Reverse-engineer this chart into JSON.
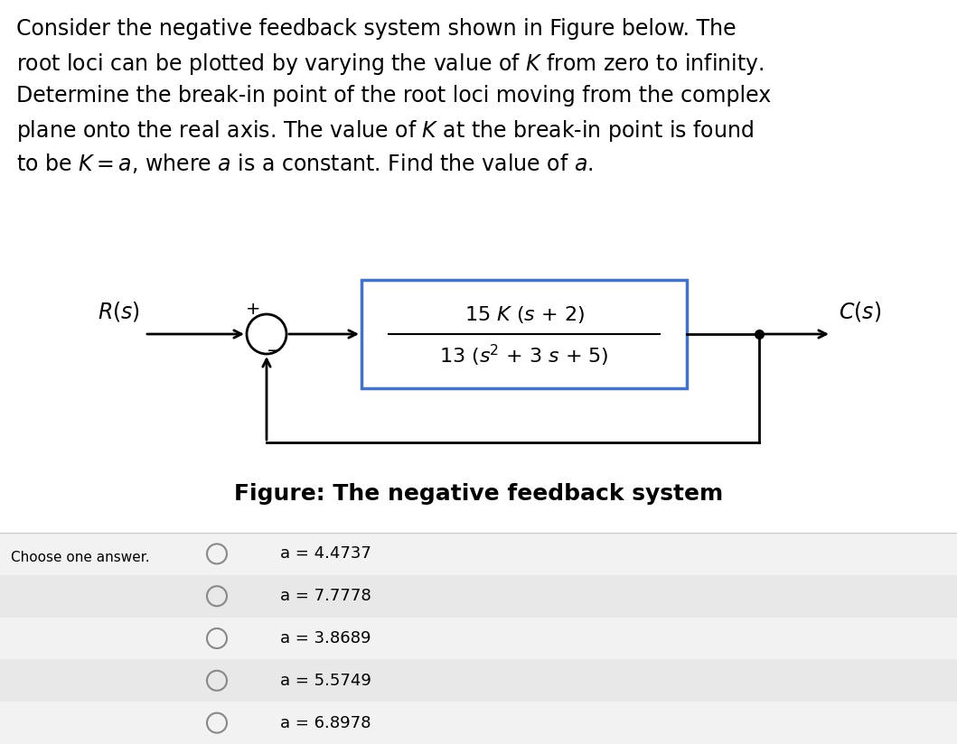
{
  "title_lines": [
    "Consider the negative feedback system shown in Figure below. The",
    "root loci can be plotted by varying the value of $K$ from zero to infinity.",
    "Determine the break-in point of the root loci moving from the complex",
    "plane onto the real axis. The value of $K$ at the break-in point is found",
    "to be $K = a$, where $a$ is a constant. Find the value of $a$."
  ],
  "figure_caption": "Figure: The negative feedback system",
  "R_label": "$R(s)$",
  "C_label": "$C(s)$",
  "choose_label": "Choose one answer.",
  "answers": [
    "a = 4.4737",
    "a = 7.7778",
    "a = 3.8689",
    "a = 5.5749",
    "a = 6.8978"
  ],
  "bg_color": "#ffffff",
  "box_edge_color": "#4472c4",
  "text_color": "#000000",
  "answer_bg_odd": "#ebebeb",
  "answer_bg_even": "#f5f5f5",
  "divider_color": "#cccccc",
  "radio_color": "#888888",
  "title_fontsize": 17,
  "body_fontsize": 15,
  "caption_fontsize": 16,
  "answer_fontsize": 13,
  "choose_fontsize": 11,
  "tf_fontsize": 15
}
